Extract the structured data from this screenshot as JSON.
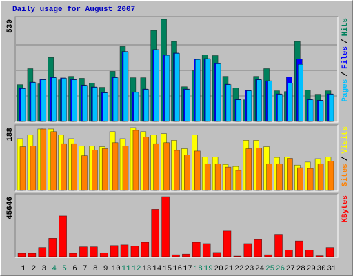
{
  "chart_data": [
    {
      "type": "bar",
      "title": "Daily usage for August 2007",
      "title_color": "#0000C0",
      "ylim": [
        0,
        530
      ],
      "yticks": [
        530
      ],
      "legend_separator": "/",
      "series": [
        {
          "name": "Hits",
          "color": "#00805C",
          "values": [
            191,
            274,
            195,
            332,
            216,
            234,
            224,
            198,
            177,
            260,
            389,
            227,
            227,
            472,
            530,
            415,
            180,
            263,
            346,
            342,
            234,
            173,
            112,
            234,
            274,
            159,
            155,
            415,
            162,
            141,
            159
          ]
        },
        {
          "name": "Files",
          "color": "#0000FF",
          "values": [
            172,
            204,
            218,
            229,
            226,
            218,
            189,
            179,
            150,
            229,
            363,
            153,
            168,
            373,
            345,
            355,
            168,
            323,
            326,
            301,
            193,
            114,
            161,
            218,
            211,
            143,
            231,
            324,
            114,
            110,
            143
          ]
        },
        {
          "name": "Pages",
          "color": "#00C0FF",
          "values": [
            170,
            202,
            216,
            227,
            224,
            216,
            187,
            177,
            148,
            227,
            361,
            151,
            166,
            371,
            343,
            353,
            166,
            321,
            324,
            299,
            191,
            112,
            159,
            216,
            209,
            141,
            198,
            296,
            112,
            108,
            141
          ]
        }
      ]
    },
    {
      "type": "bar",
      "ylim": [
        0,
        188
      ],
      "yticks": [
        188
      ],
      "legend_separator": "/",
      "series": [
        {
          "name": "Visits",
          "color": "#FFFF00",
          "values": [
            155,
            166,
            184,
            184,
            166,
            155,
            133,
            133,
            131,
            176,
            155,
            188,
            176,
            166,
            170,
            150,
            125,
            166,
            100,
            100,
            78,
            72,
            150,
            150,
            131,
            99,
            100,
            76,
            85,
            95,
            100
          ]
        },
        {
          "name": "Sites",
          "color": "#FF8000",
          "values": [
            131,
            133,
            184,
            176,
            140,
            140,
            104,
            121,
            125,
            143,
            133,
            180,
            160,
            140,
            143,
            120,
            106,
            118,
            80,
            80,
            70,
            60,
            125,
            127,
            80,
            80,
            96,
            68,
            66,
            80,
            88
          ]
        }
      ]
    },
    {
      "type": "bar",
      "ylim": [
        0,
        45646
      ],
      "yticks": [
        45646
      ],
      "categories": [
        "1",
        "2",
        "3",
        "4",
        "5",
        "6",
        "7",
        "8",
        "9",
        "10",
        "11",
        "12",
        "13",
        "14",
        "15",
        "16",
        "17",
        "18",
        "19",
        "20",
        "21",
        "22",
        "23",
        "24",
        "25",
        "26",
        "27",
        "28",
        "29",
        "30",
        "31"
      ],
      "weekend": [
        "4",
        "5",
        "11",
        "12",
        "18",
        "19",
        "25",
        "26"
      ],
      "weekend_color": "#00805C",
      "series": [
        {
          "name": "KBytes",
          "color": "#FF0000",
          "values": [
            2600,
            2600,
            7000,
            14000,
            31000,
            2600,
            7500,
            7500,
            3000,
            8500,
            9000,
            8000,
            11000,
            36000,
            45646,
            1500,
            2000,
            11000,
            10000,
            3200,
            19500,
            500,
            10000,
            13000,
            1500,
            17000,
            5000,
            12000,
            5000,
            700,
            7000
          ]
        }
      ]
    }
  ]
}
